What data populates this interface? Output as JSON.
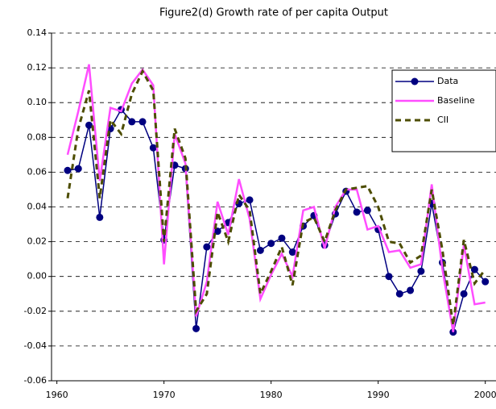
{
  "chart_data": {
    "type": "line",
    "title": "Figure2(d) Growth rate of per capita Output",
    "x": [
      1961,
      1962,
      1963,
      1964,
      1965,
      1966,
      1967,
      1968,
      1969,
      1970,
      1971,
      1972,
      1973,
      1974,
      1975,
      1976,
      1977,
      1978,
      1979,
      1980,
      1981,
      1982,
      1983,
      1984,
      1985,
      1986,
      1987,
      1988,
      1989,
      1990,
      1991,
      1992,
      1993,
      1994,
      1995,
      1996,
      1997,
      1998,
      1999,
      2000
    ],
    "series": [
      {
        "name": "Data",
        "color": "#000080",
        "marker": "circle",
        "dash": false,
        "values": [
          0.061,
          0.062,
          0.087,
          0.034,
          0.085,
          0.096,
          0.089,
          0.089,
          0.074,
          0.021,
          0.064,
          0.062,
          -0.03,
          0.017,
          0.026,
          0.031,
          0.042,
          0.044,
          0.015,
          0.019,
          0.022,
          0.014,
          0.029,
          0.035,
          0.018,
          0.036,
          0.049,
          0.037,
          0.038,
          0.027,
          0.0,
          -0.01,
          -0.008,
          0.003,
          0.042,
          0.008,
          -0.032,
          -0.01,
          0.004,
          -0.003
        ]
      },
      {
        "name": "Baseline",
        "color": "#ff4dff",
        "marker": null,
        "dash": false,
        "values": [
          0.07,
          0.095,
          0.122,
          0.055,
          0.097,
          0.095,
          0.111,
          0.119,
          0.11,
          0.007,
          0.082,
          0.065,
          -0.023,
          -0.003,
          0.043,
          0.024,
          0.056,
          0.033,
          -0.013,
          0.001,
          0.013,
          0.0,
          0.038,
          0.04,
          0.016,
          0.04,
          0.05,
          0.05,
          0.027,
          0.029,
          0.014,
          0.015,
          0.005,
          0.007,
          0.053,
          0.004,
          -0.032,
          0.018,
          -0.016,
          -0.015
        ]
      },
      {
        "name": "CII",
        "color": "#4d4d00",
        "marker": null,
        "dash": true,
        "values": [
          0.045,
          0.085,
          0.107,
          0.045,
          0.09,
          0.082,
          0.105,
          0.118,
          0.107,
          0.02,
          0.085,
          0.068,
          -0.02,
          -0.01,
          0.037,
          0.02,
          0.047,
          0.038,
          -0.01,
          0.003,
          0.017,
          -0.005,
          0.031,
          0.034,
          0.02,
          0.038,
          0.05,
          0.051,
          0.052,
          0.04,
          0.02,
          0.019,
          0.008,
          0.012,
          0.05,
          0.015,
          -0.028,
          0.021,
          -0.004,
          0.004
        ]
      }
    ],
    "xlim": [
      1959.5,
      2001
    ],
    "xticks": [
      1960,
      1970,
      1980,
      1990,
      2000
    ],
    "ylim": [
      -0.06,
      0.14
    ],
    "yticks": [
      {
        "value": -0.06,
        "label": "-0.06"
      },
      {
        "value": -0.04,
        "label": "-0.04"
      },
      {
        "value": -0.02,
        "label": "-0.02"
      },
      {
        "value": 0,
        "label": "0.00"
      },
      {
        "value": 0.02,
        "label": "0.02"
      },
      {
        "value": 0.04,
        "label": "0.04"
      },
      {
        "value": 0.06,
        "label": "0.06"
      },
      {
        "value": 0.08,
        "label": "0.08"
      },
      {
        "value": 0.1,
        "label": "0.10"
      },
      {
        "value": 0.12,
        "label": "0.12"
      },
      {
        "value": 0.14,
        "label": "0.14"
      }
    ],
    "grid": true,
    "legend": "upper-right"
  }
}
